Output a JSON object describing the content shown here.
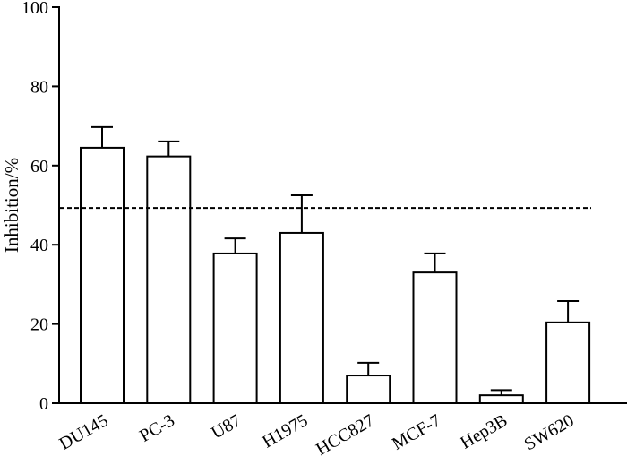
{
  "chart_data": {
    "type": "bar",
    "title": "",
    "xlabel": "",
    "ylabel": "Inhibition/%",
    "ylim": [
      0,
      100
    ],
    "yticks": [
      0,
      20,
      40,
      60,
      80,
      100
    ],
    "grid": false,
    "categories": [
      "DU145",
      "PC-3",
      "U87",
      "H1975",
      "HCC827",
      "MCF-7",
      "Hep3B",
      "SW620"
    ],
    "values": [
      64.5,
      62.3,
      37.8,
      43.0,
      7.0,
      33.0,
      2.0,
      20.4
    ],
    "error_upper": [
      5.2,
      3.8,
      3.8,
      9.5,
      3.2,
      4.8,
      1.3,
      5.4
    ],
    "reference_line": {
      "y": 49.3,
      "style": "dashed"
    },
    "bar_fill": "#ffffff",
    "bar_stroke": "#000000"
  }
}
